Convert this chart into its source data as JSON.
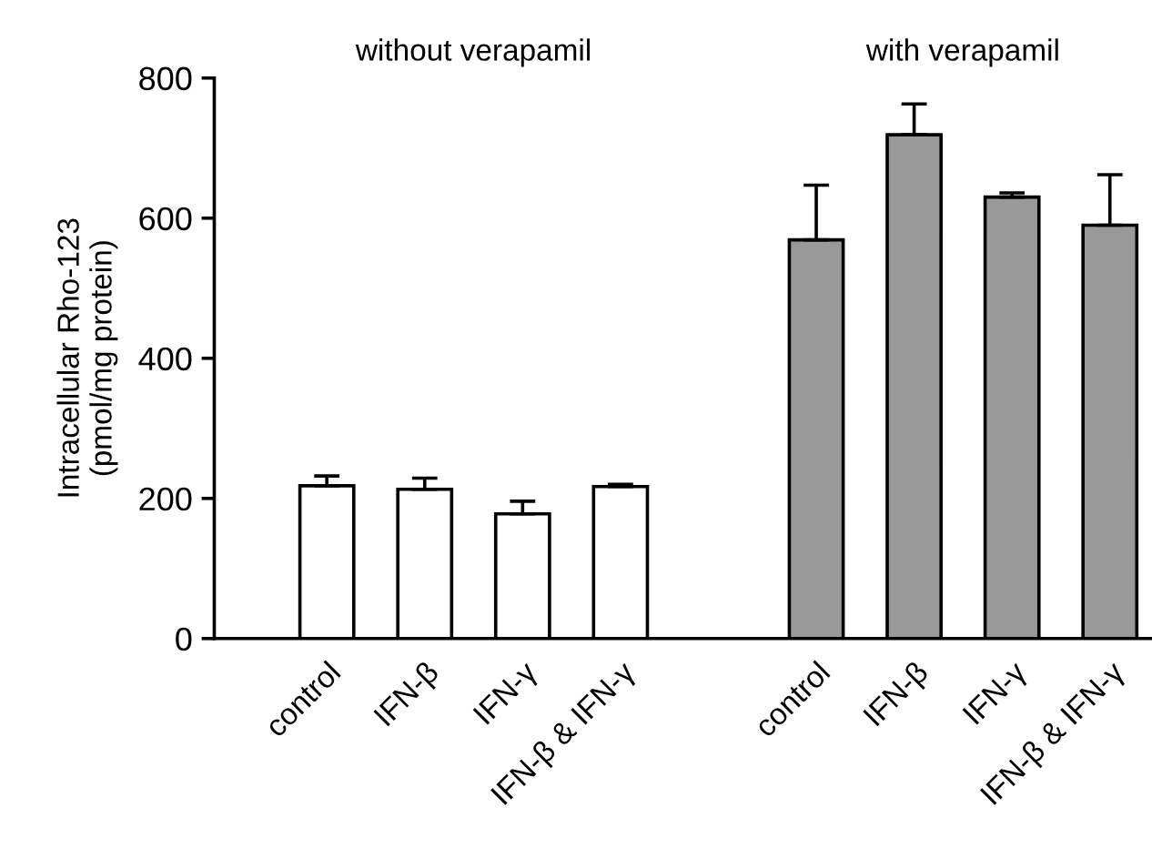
{
  "chart_data": {
    "type": "bar",
    "ylabel": "Intracellular Rho-123\n(pmol/mg protein)",
    "categories": [
      "control",
      "IFN-β",
      "IFN-γ",
      "IFN-β & IFN-γ",
      null,
      "control",
      "IFN-β",
      "IFN-γ",
      "IFN-β & IFN-γ"
    ],
    "values": [
      218,
      213,
      178,
      217,
      null,
      569,
      719,
      630,
      590
    ],
    "errors": [
      [
        218,
        232
      ],
      [
        213,
        229
      ],
      [
        178,
        196
      ],
      [
        217,
        220
      ],
      null,
      [
        569,
        647
      ],
      [
        719,
        763
      ],
      [
        630,
        636
      ],
      [
        590,
        662
      ]
    ],
    "colors": [
      "#ffffff",
      "#ffffff",
      "#ffffff",
      "#ffffff",
      null,
      "#999999",
      "#999999",
      "#999999",
      "#999999"
    ],
    "annotations": [
      "without verapamil",
      "with verapamil"
    ],
    "ylim": [
      0,
      800
    ],
    "yticks": [
      0,
      200,
      400,
      600,
      800
    ],
    "grid": false,
    "legend": false
  }
}
